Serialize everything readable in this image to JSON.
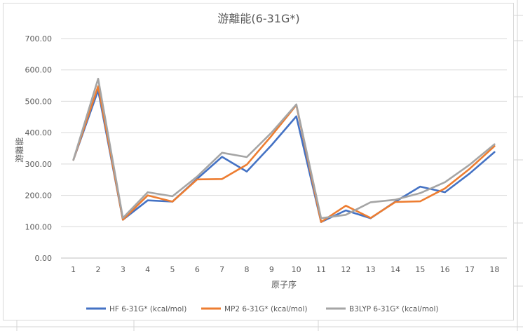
{
  "chart_data": {
    "type": "line",
    "title": "游離能(6-31G*)",
    "xlabel": "原子序",
    "ylabel": "游離能",
    "x": [
      1,
      2,
      3,
      4,
      5,
      6,
      7,
      8,
      9,
      10,
      11,
      12,
      13,
      14,
      15,
      16,
      17,
      18
    ],
    "y_ticks": [
      "0.00",
      "100.00",
      "200.00",
      "300.00",
      "400.00",
      "500.00",
      "600.00",
      "700.00"
    ],
    "ylim": [
      0,
      700
    ],
    "grid": true,
    "legend_position": "bottom",
    "series": [
      {
        "name": "HF 6-31G* (kcal/mol)",
        "color": "#4472C4",
        "values": [
          313,
          535,
          122,
          184,
          180,
          253,
          323,
          276,
          360,
          452,
          115,
          152,
          127,
          180,
          228,
          210,
          270,
          338
        ]
      },
      {
        "name": "MP2 6-31G* (kcal/mol)",
        "color": "#ED7D31",
        "values": [
          313,
          548,
          122,
          200,
          180,
          251,
          252,
          298,
          390,
          488,
          115,
          167,
          128,
          179,
          181,
          222,
          285,
          357
        ]
      },
      {
        "name": "B3LYP 6-31G* (kcal/mol)",
        "color": "#A5A5A5",
        "values": [
          313,
          572,
          128,
          210,
          197,
          260,
          336,
          322,
          400,
          490,
          127,
          138,
          178,
          186,
          207,
          242,
          298,
          363
        ]
      }
    ]
  }
}
